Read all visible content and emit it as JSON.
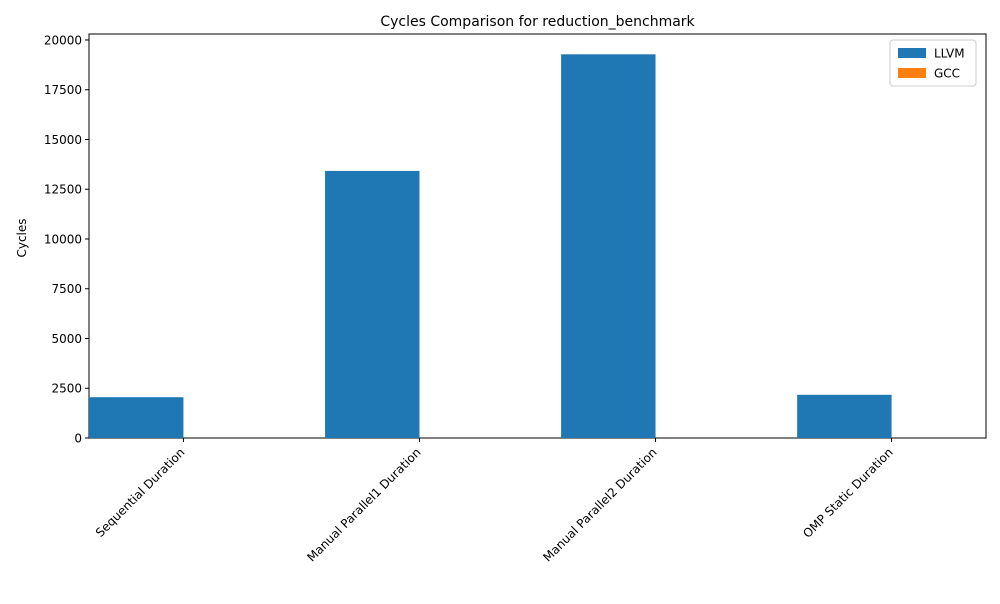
{
  "chart_data": {
    "type": "bar",
    "title": "Cycles Comparison for reduction_benchmark",
    "xlabel": "",
    "ylabel": "Cycles",
    "categories": [
      "Sequential Duration",
      "Manual Parallel1 Duration",
      "Manual Parallel2 Duration",
      "OMP Static Duration"
    ],
    "series": [
      {
        "name": "LLVM",
        "color": "#1f77b4",
        "values": [
          2050,
          13420,
          19280,
          2170
        ]
      },
      {
        "name": "GCC",
        "color": "#ff7f0e",
        "values": [
          0,
          0,
          0,
          0
        ]
      }
    ],
    "ylim": [
      0,
      20300
    ],
    "yticks": [
      0,
      2500,
      5000,
      7500,
      10000,
      12500,
      15000,
      17500,
      20000
    ],
    "ytick_labels": [
      "0",
      "2500",
      "5000",
      "7500",
      "10000",
      "12500",
      "15000",
      "17500",
      "20000"
    ],
    "grid": false,
    "legend_position": "top-right"
  }
}
